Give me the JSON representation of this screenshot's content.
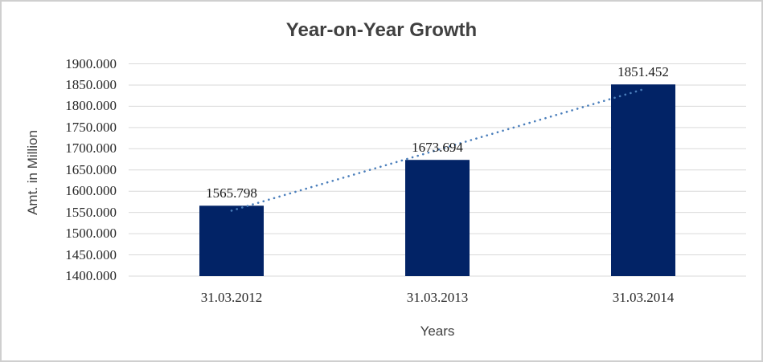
{
  "chart": {
    "title": "Year-on-Year Growth",
    "y_axis_title": "Amt. in Million",
    "x_axis_title": "Years"
  },
  "chart_data": {
    "type": "bar",
    "title": "Year-on-Year Growth",
    "xlabel": "Years",
    "ylabel": "Amt. in Million",
    "categories": [
      "31.03.2012",
      "31.03.2013",
      "31.03.2014"
    ],
    "values": [
      1565.798,
      1673.694,
      1851.452
    ],
    "data_labels": [
      "1565.798",
      "1673.694",
      "1851.452"
    ],
    "y_ticks": [
      "1900.000",
      "1850.000",
      "1800.000",
      "1750.000",
      "1700.000",
      "1650.000",
      "1600.000",
      "1550.000",
      "1500.000",
      "1450.000",
      "1400.000"
    ],
    "ylim": [
      1400,
      1900
    ],
    "y_step": 50,
    "grid": true,
    "legend_position": "none",
    "trendline": {
      "type": "linear",
      "style": "dotted"
    },
    "colors": {
      "bar": "#022366",
      "trendline": "#4a7ebb",
      "gridline": "#d9d9d9",
      "title_text": "#404040",
      "tick_text": "#262626",
      "frame_border": "#cfcfcf"
    }
  }
}
